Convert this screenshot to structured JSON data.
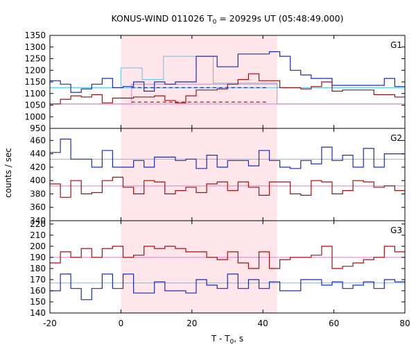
{
  "chart_data": {
    "type": "line",
    "title": "KONUS-WIND 011026 T₀ = 20929s UT (05:48:49.000)",
    "title_main": "KONUS-WIND 011026 T",
    "title_sub": "0",
    "title_rest": " = 20929s UT (05:48:49.000)",
    "xlabel_main": "T - T",
    "xlabel_sub": "0",
    "xlabel_rest": ", s",
    "ylabel": "counts / sec",
    "xlim": [
      -20,
      80
    ],
    "x_ticks": [
      "-20",
      "0",
      "20",
      "40",
      "60",
      "80"
    ],
    "x_tick_values": [
      -20,
      0,
      20,
      40,
      60,
      80
    ],
    "highlight_interval": [
      0,
      44
    ],
    "colors": {
      "blue": "#1e2bb0",
      "red": "#a01010",
      "cyan": "#5ac8ec",
      "pink": "#e07ad6",
      "highlight": "#ffe6ea"
    },
    "bin_width": 2.944,
    "bin_start": -20,
    "panels": [
      {
        "name": "G1",
        "ylim": [
          950,
          1350
        ],
        "y_ticks": [
          "950",
          "1000",
          "1050",
          "1100",
          "1150",
          "1200",
          "1250",
          "1300",
          "1350"
        ],
        "y_tick_values": [
          950,
          1000,
          1050,
          1100,
          1150,
          1200,
          1250,
          1300,
          1350
        ],
        "series": [
          {
            "color": "blue",
            "values": [
              1155,
              1140,
              1105,
              1120,
              1140,
              1165,
              1125,
              1130,
              1150,
              1110,
              1150,
              1140,
              1150,
              1150,
              1260,
              1260,
              1215,
              1215,
              1270,
              1270,
              1270,
              1280,
              1260,
              1200,
              1180,
              1165,
              1165,
              1135,
              1135,
              1135,
              1135,
              1135,
              1165,
              1130,
              1130,
              1130,
              1120,
              1115,
              1140,
              1120,
              1135,
              1130,
              1130,
              1115,
              1115,
              1140,
              1125,
              1125,
              1115,
              1115,
              1125,
              1125,
              1140,
              1130,
              1130,
              1130,
              1130,
              1120,
              1130,
              1125,
              1120
            ]
          },
          {
            "color": "red",
            "values": [
              1055,
              1075,
              1090,
              1085,
              1095,
              1060,
              1080,
              1080,
              1085,
              1085,
              1090,
              1070,
              1060,
              1090,
              1115,
              1115,
              1120,
              1140,
              1160,
              1185,
              1155,
              1155,
              1125,
              1125,
              1120,
              1130,
              1150,
              1110,
              1115,
              1115,
              1115,
              1095,
              1095,
              1085,
              1080,
              1060,
              1065,
              1085,
              1075,
              1085,
              1080,
              1080,
              1085,
              1085,
              1075,
              1085,
              1055,
              1055,
              1055,
              1070,
              1060,
              1075,
              1065,
              1065,
              1050,
              1060,
              1070,
              1065,
              1075,
              1075,
              1050
            ]
          }
        ],
        "background_lines": [
          {
            "color": "cyan",
            "value": 1125
          },
          {
            "color": "pink",
            "value": 1055
          }
        ],
        "fits": [
          {
            "color": "cyan",
            "segments": [
              {
                "x": [
                  -20,
                  0
                ],
                "y": 1125
              },
              {
                "x": [
                  0,
                  6
                ],
                "y": 1210
              },
              {
                "x": [
                  6,
                  12
                ],
                "y": 1160
              },
              {
                "x": [
                  12,
                  26
                ],
                "y": 1260
              },
              {
                "x": [
                  26,
                  44
                ],
                "y": 1145
              },
              {
                "x": [
                  44,
                  80
                ],
                "y": 1125
              }
            ]
          },
          {
            "color": "pink",
            "segments": [
              {
                "x": [
                  -20,
                  3
                ],
                "y": 1055
              },
              {
                "x": [
                  3,
                  44
                ],
                "y": 1140
              },
              {
                "x": [
                  44,
                  80
                ],
                "y": 1055
              }
            ]
          }
        ],
        "dashed": [
          {
            "color": "blue",
            "x": [
              3,
              41
            ],
            "y": 1125
          },
          {
            "color": "red",
            "x": [
              3,
              41
            ],
            "y": 1063
          }
        ]
      },
      {
        "name": "G2",
        "ylim": [
          340,
          478
        ],
        "y_ticks": [
          "340",
          "360",
          "380",
          "400",
          "420",
          "440",
          "460"
        ],
        "y_tick_values": [
          340,
          360,
          380,
          400,
          420,
          440,
          460
        ],
        "series": [
          {
            "color": "blue",
            "values": [
              442,
              462,
              432,
              432,
              420,
              445,
              420,
              420,
              430,
              420,
              435,
              435,
              430,
              432,
              418,
              438,
              420,
              430,
              430,
              422,
              445,
              430,
              420,
              418,
              430,
              425,
              450,
              430,
              438,
              420,
              448,
              420,
              440,
              440,
              420,
              430,
              440,
              430,
              430,
              430,
              438,
              420,
              440,
              440,
              430,
              445,
              445,
              430,
              445,
              430,
              440,
              432,
              440,
              430,
              420,
              440,
              445,
              420,
              440,
              430,
              440
            ]
          },
          {
            "color": "red",
            "values": [
              395,
              375,
              400,
              380,
              382,
              400,
              405,
              390,
              380,
              400,
              398,
              380,
              385,
              390,
              382,
              395,
              398,
              385,
              398,
              390,
              378,
              398,
              398,
              380,
              378,
              400,
              398,
              380,
              385,
              400,
              398,
              390,
              392,
              385,
              405,
              395,
              400,
              398,
              395,
              402,
              382,
              395,
              398,
              405,
              400,
              395,
              385,
              375,
              390,
              395,
              380,
              395,
              398,
              392,
              400,
              395,
              398,
              390,
              398,
              388,
              395
            ]
          }
        ],
        "background_lines": [
          {
            "color": "cyan",
            "value": 432
          },
          {
            "color": "pink",
            "value": 392
          }
        ]
      },
      {
        "name": "G3",
        "ylim": [
          140,
          223
        ],
        "y_ticks": [
          "140",
          "150",
          "160",
          "170",
          "180",
          "190",
          "200",
          "210",
          "220"
        ],
        "y_tick_values": [
          140,
          150,
          160,
          170,
          180,
          190,
          200,
          210,
          220
        ],
        "series": [
          {
            "color": "blue",
            "values": [
              160,
              175,
              162,
              152,
              162,
              175,
              162,
              175,
              158,
              158,
              168,
              160,
              160,
              158,
              170,
              165,
              162,
              175,
              162,
              170,
              162,
              168,
              160,
              160,
              170,
              170,
              165,
              168,
              162,
              165,
              168,
              162,
              170,
              168,
              162,
              168,
              160,
              175,
              162,
              165,
              160,
              178,
              170,
              165,
              168,
              162,
              175,
              165,
              160,
              172,
              160,
              168,
              175,
              165,
              168,
              172,
              165,
              160,
              168,
              175,
              160
            ]
          },
          {
            "color": "red",
            "values": [
              185,
              195,
              190,
              198,
              190,
              198,
              200,
              190,
              192,
              200,
              198,
              200,
              198,
              195,
              195,
              190,
              188,
              195,
              185,
              180,
              195,
              180,
              188,
              190,
              190,
              192,
              200,
              180,
              182,
              185,
              188,
              190,
              200,
              195,
              205,
              205,
              178,
              172,
              175,
              208,
              215,
              190,
              198,
              200,
              195,
              188,
              198,
              195,
              192,
              200,
              195,
              200,
              182,
              185,
              182,
              188,
              190,
              188,
              182,
              200,
              195
            ]
          }
        ],
        "background_lines": [
          {
            "color": "cyan",
            "value": 167
          },
          {
            "color": "pink",
            "value": 190
          }
        ]
      }
    ]
  }
}
